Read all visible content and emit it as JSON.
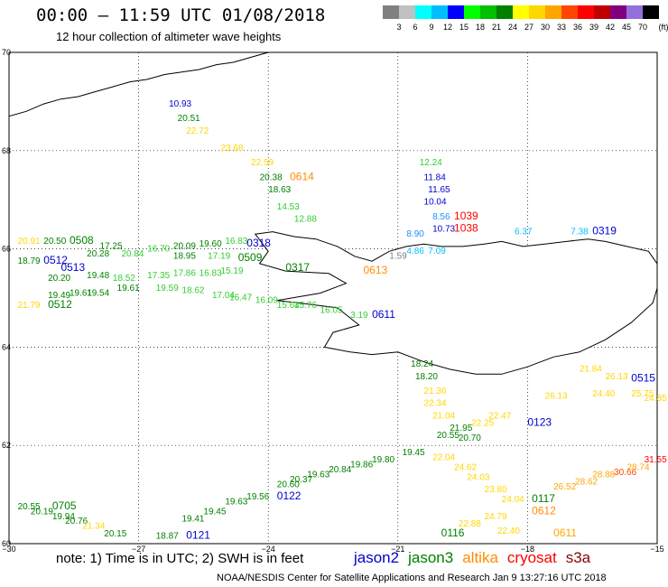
{
  "header": {
    "title": "00:00 – 11:59 UTC 01/08/2018",
    "subtitle": "12 hour collection of altimeter wave heights",
    "unit_label": "(ft)"
  },
  "colorbar": [
    {
      "label": "",
      "color": "#808080"
    },
    {
      "label": "3",
      "color": "#c0c0c0"
    },
    {
      "label": "6",
      "color": "#00ffff"
    },
    {
      "label": "9",
      "color": "#00bfff"
    },
    {
      "label": "12",
      "color": "#0000ff"
    },
    {
      "label": "15",
      "color": "#00ff00"
    },
    {
      "label": "18",
      "color": "#00c000"
    },
    {
      "label": "21",
      "color": "#008000"
    },
    {
      "label": "24",
      "color": "#ffff00"
    },
    {
      "label": "27",
      "color": "#ffd700"
    },
    {
      "label": "30",
      "color": "#ffa500"
    },
    {
      "label": "33",
      "color": "#ff4500"
    },
    {
      "label": "36",
      "color": "#ff0000"
    },
    {
      "label": "39",
      "color": "#c00000"
    },
    {
      "label": "42",
      "color": "#800080"
    },
    {
      "label": "45",
      "color": "#9370db"
    },
    {
      "label": "70",
      "color": "#000000"
    }
  ],
  "map": {
    "lon_range": [
      -30,
      -15
    ],
    "lat_range": [
      60,
      70
    ],
    "lon_ticks": [
      "−30",
      "−27",
      "−24",
      "−21",
      "−18",
      "−15"
    ],
    "lat_ticks": [
      "70",
      "68",
      "66",
      "64",
      "62",
      "60"
    ],
    "coastline_color": "#000000"
  },
  "wave_labels": [
    {
      "text": "10.93",
      "lon": -26.3,
      "lat": 68.9,
      "color": "#0000cd"
    },
    {
      "text": "20.51",
      "lon": -26.1,
      "lat": 68.6,
      "color": "#008000"
    },
    {
      "text": "22.72",
      "lon": -25.9,
      "lat": 68.35,
      "color": "#ffd700"
    },
    {
      "text": "23.68",
      "lon": -25.1,
      "lat": 68.0,
      "color": "#ffd700"
    },
    {
      "text": "22.59",
      "lon": -24.4,
      "lat": 67.7,
      "color": "#ffd700"
    },
    {
      "text": "20.38",
      "lon": -24.2,
      "lat": 67.4,
      "color": "#008000"
    },
    {
      "text": "0614",
      "lon": -23.5,
      "lat": 67.4,
      "color": "#ff8c00",
      "big": true
    },
    {
      "text": "18.63",
      "lon": -24.0,
      "lat": 67.15,
      "color": "#008000"
    },
    {
      "text": "14.53",
      "lon": -23.8,
      "lat": 66.8,
      "color": "#32cd32"
    },
    {
      "text": "12.88",
      "lon": -23.4,
      "lat": 66.55,
      "color": "#32cd32"
    },
    {
      "text": "12.24",
      "lon": -20.5,
      "lat": 67.7,
      "color": "#32cd32"
    },
    {
      "text": "11.84",
      "lon": -20.4,
      "lat": 67.4,
      "color": "#0000cd"
    },
    {
      "text": "11.65",
      "lon": -20.3,
      "lat": 67.15,
      "color": "#0000cd"
    },
    {
      "text": "10.04",
      "lon": -20.4,
      "lat": 66.9,
      "color": "#0000cd"
    },
    {
      "text": "8.56",
      "lon": -20.2,
      "lat": 66.6,
      "color": "#1e90ff"
    },
    {
      "text": "1039",
      "lon": -19.7,
      "lat": 66.6,
      "color": "#ff0000",
      "big": true
    },
    {
      "text": "10.73",
      "lon": -20.2,
      "lat": 66.35,
      "color": "#0000cd"
    },
    {
      "text": "1038",
      "lon": -19.7,
      "lat": 66.35,
      "color": "#ff0000",
      "big": true
    },
    {
      "text": "8.90",
      "lon": -20.8,
      "lat": 66.25,
      "color": "#1e90ff"
    },
    {
      "text": "6.37",
      "lon": -18.3,
      "lat": 66.3,
      "color": "#00bfff"
    },
    {
      "text": "7.38",
      "lon": -17.0,
      "lat": 66.3,
      "color": "#00bfff"
    },
    {
      "text": "0319",
      "lon": -16.5,
      "lat": 66.3,
      "color": "#0000cd",
      "big": true
    },
    {
      "text": "4.86",
      "lon": -20.8,
      "lat": 65.9,
      "color": "#00bfff"
    },
    {
      "text": "7.09",
      "lon": -20.3,
      "lat": 65.9,
      "color": "#00bfff"
    },
    {
      "text": "1.59",
      "lon": -21.2,
      "lat": 65.8,
      "color": "#808080"
    },
    {
      "text": "20.91",
      "lon": -29.8,
      "lat": 66.1,
      "color": "#ffd700"
    },
    {
      "text": "20.50",
      "lon": -29.2,
      "lat": 66.1,
      "color": "#008000"
    },
    {
      "text": "0508",
      "lon": -28.6,
      "lat": 66.1,
      "color": "#008000",
      "big": true
    },
    {
      "text": "17.25",
      "lon": -27.9,
      "lat": 66.0,
      "color": "#008000"
    },
    {
      "text": "20.28",
      "lon": -28.2,
      "lat": 65.85,
      "color": "#008000"
    },
    {
      "text": "20.84",
      "lon": -27.4,
      "lat": 65.85,
      "color": "#32cd32"
    },
    {
      "text": "16.70",
      "lon": -26.8,
      "lat": 65.95,
      "color": "#32cd32"
    },
    {
      "text": "20.09",
      "lon": -26.2,
      "lat": 66.0,
      "color": "#008000"
    },
    {
      "text": "19.60",
      "lon": -25.6,
      "lat": 66.05,
      "color": "#008000"
    },
    {
      "text": "16.83",
      "lon": -25.0,
      "lat": 66.1,
      "color": "#32cd32"
    },
    {
      "text": "0318",
      "lon": -24.5,
      "lat": 66.05,
      "color": "#0000cd",
      "big": true
    },
    {
      "text": "18.95",
      "lon": -26.2,
      "lat": 65.8,
      "color": "#008000"
    },
    {
      "text": "17.19",
      "lon": -25.4,
      "lat": 65.8,
      "color": "#32cd32"
    },
    {
      "text": "0509",
      "lon": -24.7,
      "lat": 65.75,
      "color": "#008000",
      "big": true
    },
    {
      "text": "18.79",
      "lon": -29.8,
      "lat": 65.7,
      "color": "#008000"
    },
    {
      "text": "0512",
      "lon": -29.2,
      "lat": 65.7,
      "color": "#0000cd",
      "big": true
    },
    {
      "text": "0513",
      "lon": -28.8,
      "lat": 65.55,
      "color": "#0000cd",
      "big": true
    },
    {
      "text": "20.20",
      "lon": -29.1,
      "lat": 65.35,
      "color": "#008000"
    },
    {
      "text": "19.48",
      "lon": -28.2,
      "lat": 65.4,
      "color": "#008000"
    },
    {
      "text": "18.52",
      "lon": -27.6,
      "lat": 65.35,
      "color": "#32cd32"
    },
    {
      "text": "17.35",
      "lon": -26.8,
      "lat": 65.4,
      "color": "#32cd32"
    },
    {
      "text": "17.86",
      "lon": -26.2,
      "lat": 65.45,
      "color": "#32cd32"
    },
    {
      "text": "16.83",
      "lon": -25.6,
      "lat": 65.45,
      "color": "#32cd32"
    },
    {
      "text": "15.19",
      "lon": -25.1,
      "lat": 65.5,
      "color": "#32cd32"
    },
    {
      "text": "0317",
      "lon": -23.6,
      "lat": 65.55,
      "color": "#008000",
      "big": true
    },
    {
      "text": "0613",
      "lon": -21.8,
      "lat": 65.5,
      "color": "#ff8c00",
      "big": true
    },
    {
      "text": "19.61",
      "lon": -27.5,
      "lat": 65.15,
      "color": "#008000"
    },
    {
      "text": "19.59",
      "lon": -26.6,
      "lat": 65.15,
      "color": "#32cd32"
    },
    {
      "text": "18.62",
      "lon": -26.0,
      "lat": 65.1,
      "color": "#32cd32"
    },
    {
      "text": "17.04",
      "lon": -25.3,
      "lat": 65.0,
      "color": "#32cd32"
    },
    {
      "text": "16.47",
      "lon": -24.9,
      "lat": 64.95,
      "color": "#32cd32"
    },
    {
      "text": "16.09",
      "lon": -24.3,
      "lat": 64.9,
      "color": "#32cd32"
    },
    {
      "text": "15.64",
      "lon": -23.8,
      "lat": 64.8,
      "color": "#32cd32"
    },
    {
      "text": "15.76",
      "lon": -23.4,
      "lat": 64.8,
      "color": "#32cd32"
    },
    {
      "text": "16.05",
      "lon": -22.8,
      "lat": 64.7,
      "color": "#32cd32"
    },
    {
      "text": "19.49",
      "lon": -29.1,
      "lat": 65.0,
      "color": "#008000"
    },
    {
      "text": "19.61",
      "lon": -28.6,
      "lat": 65.05,
      "color": "#008000"
    },
    {
      "text": "19.54",
      "lon": -28.2,
      "lat": 65.05,
      "color": "#008000"
    },
    {
      "text": "21.79",
      "lon": -29.8,
      "lat": 64.8,
      "color": "#ffd700"
    },
    {
      "text": "0512",
      "lon": -29.1,
      "lat": 64.8,
      "color": "#008000",
      "big": true
    },
    {
      "text": "3.19",
      "lon": -22.1,
      "lat": 64.6,
      "color": "#32cd32"
    },
    {
      "text": "0611",
      "lon": -21.6,
      "lat": 64.6,
      "color": "#0000cd",
      "big": true
    },
    {
      "text": "18.24",
      "lon": -20.7,
      "lat": 63.6,
      "color": "#008000"
    },
    {
      "text": "18.20",
      "lon": -20.6,
      "lat": 63.35,
      "color": "#008000"
    },
    {
      "text": "21.36",
      "lon": -20.4,
      "lat": 63.05,
      "color": "#ffd700"
    },
    {
      "text": "22.34",
      "lon": -20.4,
      "lat": 62.8,
      "color": "#ffd700"
    },
    {
      "text": "21.04",
      "lon": -20.2,
      "lat": 62.55,
      "color": "#ffd700"
    },
    {
      "text": "21.95",
      "lon": -19.8,
      "lat": 62.3,
      "color": "#008000"
    },
    {
      "text": "22.25",
      "lon": -19.3,
      "lat": 62.4,
      "color": "#ffd700"
    },
    {
      "text": "0123",
      "lon": -18.0,
      "lat": 62.4,
      "color": "#0000cd",
      "big": true
    },
    {
      "text": "22.47",
      "lon": -18.9,
      "lat": 62.55,
      "color": "#ffd700"
    },
    {
      "text": "20.70",
      "lon": -19.6,
      "lat": 62.1,
      "color": "#008000"
    },
    {
      "text": "20.55",
      "lon": -20.1,
      "lat": 62.15,
      "color": "#008000"
    },
    {
      "text": "21.84",
      "lon": -16.8,
      "lat": 63.5,
      "color": "#ffd700"
    },
    {
      "text": "26.13",
      "lon": -16.2,
      "lat": 63.35,
      "color": "#ffd700"
    },
    {
      "text": "24.40",
      "lon": -16.5,
      "lat": 63.0,
      "color": "#ffd700"
    },
    {
      "text": "0515",
      "lon": -15.6,
      "lat": 63.3,
      "color": "#0000cd",
      "big": true
    },
    {
      "text": "25.75",
      "lon": -15.6,
      "lat": 63.0,
      "color": "#ffd700"
    },
    {
      "text": "24.85",
      "lon": -15.3,
      "lat": 62.9,
      "color": "#ffd700"
    },
    {
      "text": "26.13",
      "lon": -17.6,
      "lat": 62.95,
      "color": "#ffd700"
    },
    {
      "text": "19.45",
      "lon": -20.9,
      "lat": 61.8,
      "color": "#008000"
    },
    {
      "text": "19.80",
      "lon": -21.6,
      "lat": 61.65,
      "color": "#008000"
    },
    {
      "text": "19.86",
      "lon": -22.1,
      "lat": 61.55,
      "color": "#008000"
    },
    {
      "text": "20.84",
      "lon": -22.6,
      "lat": 61.45,
      "color": "#008000"
    },
    {
      "text": "19.63",
      "lon": -23.1,
      "lat": 61.35,
      "color": "#008000"
    },
    {
      "text": "20.37",
      "lon": -23.5,
      "lat": 61.25,
      "color": "#008000"
    },
    {
      "text": "20.60",
      "lon": -23.8,
      "lat": 61.15,
      "color": "#008000"
    },
    {
      "text": "0122",
      "lon": -23.8,
      "lat": 60.9,
      "color": "#0000cd",
      "big": true
    },
    {
      "text": "22.04",
      "lon": -20.2,
      "lat": 61.7,
      "color": "#ffd700"
    },
    {
      "text": "24.62",
      "lon": -19.7,
      "lat": 61.5,
      "color": "#ffd700"
    },
    {
      "text": "24.03",
      "lon": -19.4,
      "lat": 61.3,
      "color": "#ffd700"
    },
    {
      "text": "23.80",
      "lon": -19.0,
      "lat": 61.05,
      "color": "#ffd700"
    },
    {
      "text": "24.04",
      "lon": -18.6,
      "lat": 60.85,
      "color": "#ffd700"
    },
    {
      "text": "0117",
      "lon": -17.9,
      "lat": 60.85,
      "color": "#008000",
      "big": true
    },
    {
      "text": "26.52",
      "lon": -17.4,
      "lat": 61.1,
      "color": "#ffa500"
    },
    {
      "text": "28.62",
      "lon": -16.9,
      "lat": 61.2,
      "color": "#ffa500"
    },
    {
      "text": "28.88",
      "lon": -16.5,
      "lat": 61.35,
      "color": "#ffa500"
    },
    {
      "text": "30.66",
      "lon": -16.0,
      "lat": 61.4,
      "color": "#ff4500"
    },
    {
      "text": "28.74",
      "lon": -15.7,
      "lat": 61.5,
      "color": "#ffa500"
    },
    {
      "text": "31.55",
      "lon": -15.3,
      "lat": 61.65,
      "color": "#ff0000"
    },
    {
      "text": "0612",
      "lon": -17.9,
      "lat": 60.6,
      "color": "#ff8c00",
      "big": true
    },
    {
      "text": "24.79",
      "lon": -19.0,
      "lat": 60.5,
      "color": "#ffd700"
    },
    {
      "text": "22.88",
      "lon": -19.6,
      "lat": 60.35,
      "color": "#ffd700"
    },
    {
      "text": "22.40",
      "lon": -18.7,
      "lat": 60.2,
      "color": "#ffd700"
    },
    {
      "text": "0116",
      "lon": -20.0,
      "lat": 60.15,
      "color": "#008000",
      "big": true
    },
    {
      "text": "0611",
      "lon": -17.4,
      "lat": 60.15,
      "color": "#ffa500",
      "big": true
    },
    {
      "text": "20.55",
      "lon": -29.8,
      "lat": 60.7,
      "color": "#008000"
    },
    {
      "text": "0705",
      "lon": -29.0,
      "lat": 60.7,
      "color": "#008000",
      "big": true
    },
    {
      "text": "20.19",
      "lon": -29.5,
      "lat": 60.6,
      "color": "#008000"
    },
    {
      "text": "19.94",
      "lon": -29.0,
      "lat": 60.5,
      "color": "#008000"
    },
    {
      "text": "20.76",
      "lon": -28.7,
      "lat": 60.4,
      "color": "#008000"
    },
    {
      "text": "21.34",
      "lon": -28.3,
      "lat": 60.3,
      "color": "#ffd700"
    },
    {
      "text": "20.15",
      "lon": -27.8,
      "lat": 60.15,
      "color": "#008000"
    },
    {
      "text": "18.87",
      "lon": -26.6,
      "lat": 60.1,
      "color": "#008000"
    },
    {
      "text": "0121",
      "lon": -25.9,
      "lat": 60.1,
      "color": "#0000cd",
      "big": true
    },
    {
      "text": "19.41",
      "lon": -26.0,
      "lat": 60.45,
      "color": "#008000"
    },
    {
      "text": "19.45",
      "lon": -25.5,
      "lat": 60.6,
      "color": "#008000"
    },
    {
      "text": "19.63",
      "lon": -25.0,
      "lat": 60.8,
      "color": "#008000"
    },
    {
      "text": "19.56",
      "lon": -24.5,
      "lat": 60.9,
      "color": "#008000"
    }
  ],
  "footer": {
    "note": "note: 1) Time is in UTC; 2) SWH is in feet",
    "credit": "NOAA/NESDIS Center for Satellite Applications and Research   Jan  9 13:27:16 UTC 2018",
    "satellites": [
      {
        "name": "jason2",
        "color": "#0000cd"
      },
      {
        "name": "jason3",
        "color": "#008000"
      },
      {
        "name": "altika",
        "color": "#ff8c00"
      },
      {
        "name": "cryosat",
        "color": "#ff0000"
      },
      {
        "name": "s3a",
        "color": "#8b0000"
      }
    ]
  }
}
